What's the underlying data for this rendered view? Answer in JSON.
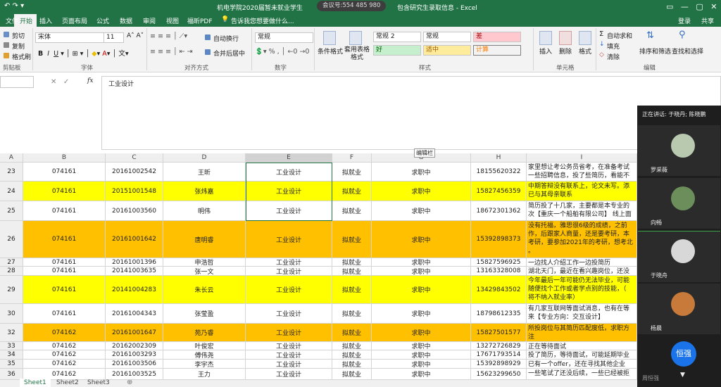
{
  "title_bar": {
    "title": "机电学院2020届暂未就业学生",
    "title_end": "包含研究生录取信息 - Excel",
    "meeting_id": "会议号:554 485 980",
    "login": "登录",
    "share": "共享"
  },
  "ribbon": {
    "tabs": [
      "文件",
      "开始",
      "插入",
      "页面布局",
      "公式",
      "数据",
      "审阅",
      "视图",
      "福昕PDF"
    ],
    "tell_me": "告诉我您想要做什么...",
    "clipboard": {
      "label": "剪贴板",
      "items": [
        "剪切",
        "复制",
        "格式刷"
      ]
    },
    "font": {
      "label": "字体",
      "name": "宋体",
      "size": "11"
    },
    "alignment": {
      "label": "对齐方式",
      "items": [
        "自动换行",
        "合并后居中"
      ]
    },
    "number": {
      "label": "数字",
      "format": "常规"
    },
    "styles": {
      "label": "样式",
      "items": [
        "条件格式",
        "套用表格格式"
      ],
      "cells": [
        "常规 2",
        "常规",
        "差",
        "好",
        "适中",
        "计算"
      ]
    },
    "cells": {
      "label": "单元格",
      "items": [
        "插入",
        "删除",
        "格式"
      ]
    },
    "editing": {
      "label": "编辑",
      "items": [
        "自动求和",
        "填充",
        "清除",
        "排序和筛选",
        "查找和选择"
      ]
    }
  },
  "formula_bar": {
    "fx": "fx",
    "content": "工业设计",
    "tooltip": "编辑栏"
  },
  "sheet": {
    "columns": [
      "A",
      "B",
      "C",
      "D",
      "E",
      "F",
      "G",
      "H",
      "I"
    ],
    "rows": [
      {
        "fill": "#ffffff",
        "cells": [
          "23",
          "074161",
          "20161002542",
          "王昕",
          "工业设计",
          "拟就业",
          "求职中",
          "18155620322"
        ],
        "note": [
          "家里想让考公务员省考，在准备考试",
          "一些招聘信息，投了些简历，看能不"
        ]
      },
      {
        "fill": "#ffff00",
        "cells": [
          "24",
          "074161",
          "20151001548",
          "张炜嘉",
          "工业设计",
          "拟就业",
          "求职中",
          "15827456359"
        ],
        "note": [
          "中期答辩没有联系上，论文未写。添",
          "已与其母亲联系"
        ]
      },
      {
        "fill": "#ffffff",
        "cells": [
          "25",
          "074161",
          "20161003560",
          "明伟",
          "工业设计",
          "拟就业",
          "求职中",
          "18672301362"
        ],
        "note": [
          "简历投了十几家，主要都是本专业的",
          "次【重庆一个船舶有限公司】 线上面"
        ]
      },
      {
        "fill": "#ffc000",
        "cells": [
          "26",
          "074161",
          "20161001642",
          "唐明睿",
          "工业设计",
          "拟就业",
          "求职中",
          "15392898373"
        ],
        "note": [
          "没有托福，雅思很6级的成绩，之前",
          "作，后跟家人商量，还是要考研，本",
          "考研，要参加2021年的考研，想考北",
          "。"
        ]
      },
      {
        "fill": "#ffffff",
        "cells": [
          "27",
          "074161",
          "20161001396",
          "申浩哲",
          "工业设计",
          "拟就业",
          "求职中",
          "15827596925"
        ],
        "note": [
          "一边找人介绍工作一边投简历"
        ]
      },
      {
        "fill": "#ffffff",
        "cells": [
          "28",
          "074161",
          "20141003635",
          "张一文",
          "工业设计",
          "拟就业",
          "求职中",
          "13163328008"
        ],
        "note": [
          "湖北天门，最近在看兴趣岗位，还没"
        ]
      },
      {
        "fill": "#ffff00",
        "cells": [
          "29",
          "074161",
          "20141004283",
          "朱长云",
          "工业设计",
          "拟就业",
          "求职中",
          "13429843502"
        ],
        "note": [
          "今年最后一年可能仍无法毕业，可能",
          "随便找个工作或者学点别的技能，（",
          "将不纳入就业率）"
        ]
      },
      {
        "fill": "#ffffff",
        "cells": [
          "30",
          "074161",
          "20161004343",
          "张莹盈",
          "工业设计",
          "拟就业",
          "求职中",
          "18798612335"
        ],
        "note": [
          "有几家互联网等面试消息，也有在等",
          "来【专业方向：交互设计】"
        ]
      },
      {
        "fill": "#ffc000",
        "cells": [
          "32",
          "074162",
          "20161001647",
          "苑乃睿",
          "工业设计",
          "拟就业",
          "求职中",
          "15827501577"
        ],
        "note": [
          "所投岗位与其简历匹配度低，求职方",
          "注"
        ]
      },
      {
        "fill": "#ffffff",
        "cells": [
          "33",
          "074162",
          "20162002309",
          "叶俊宏",
          "工业设计",
          "拟就业",
          "求职中",
          "13272726829"
        ],
        "note": [
          "正在等待面试"
        ]
      },
      {
        "fill": "#ffffff",
        "cells": [
          "34",
          "074162",
          "20161003293",
          "傅伟尧",
          "工业设计",
          "拟就业",
          "求职中",
          "17671793514"
        ],
        "note": [
          "投了简历，等待面试，可能延期毕业"
        ]
      },
      {
        "fill": "#ffffff",
        "cells": [
          "35",
          "074162",
          "20161003506",
          "李宇杰",
          "工业设计",
          "拟就业",
          "求职中",
          "15392898929"
        ],
        "note": [
          "已有一个offer，还在寻找其他企业"
        ]
      },
      {
        "fill": "#ffffff",
        "cells": [
          "36",
          "074162",
          "20161003525",
          "王力",
          "工业设计",
          "拟就业",
          "求职中",
          "15623299650"
        ],
        "note": [
          "一些笔试了还没后续，一些已经被拒"
        ]
      }
    ]
  },
  "sheet_tabs": [
    "Sheet1",
    "Sheet2",
    "Sheet3"
  ],
  "meeting": {
    "speaking": "正在讲话: 于晓丹; 陈晓鹏",
    "participants": [
      "罗采薇",
      "向畅",
      "于晓舟",
      "杨晨"
    ],
    "button": "恒强",
    "self": "周恒强"
  }
}
